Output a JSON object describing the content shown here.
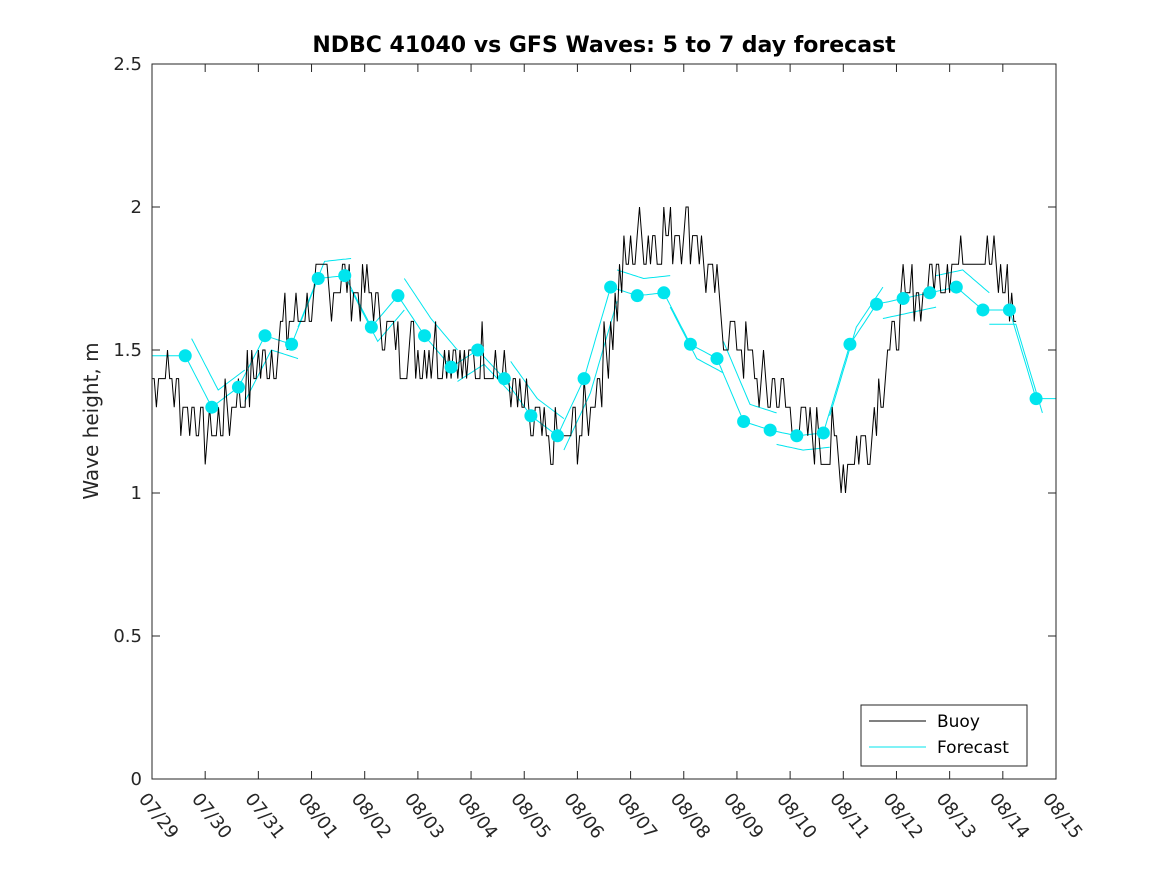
{
  "chart_data": {
    "type": "line",
    "title": "NDBC 41040 vs GFS Waves: 5 to 7 day forecast",
    "xlabel": "",
    "ylabel": "Wave height, m",
    "x_range_days": [
      0,
      17
    ],
    "ylim": [
      0,
      2.5
    ],
    "x_tick_labels": [
      "07/29",
      "07/30",
      "07/31",
      "08/01",
      "08/02",
      "08/03",
      "08/04",
      "08/05",
      "08/06",
      "08/07",
      "08/08",
      "08/09",
      "08/10",
      "08/11",
      "08/12",
      "08/13",
      "08/14",
      "08/15"
    ],
    "y_tick_labels": [
      "0",
      "0.5",
      "1",
      "1.5",
      "2",
      "2.5"
    ],
    "y_ticks": [
      0,
      0.5,
      1,
      1.5,
      2,
      2.5
    ],
    "legend": {
      "position": "bottom-right",
      "entries": [
        "Buoy",
        "Forecast"
      ]
    },
    "series": [
      {
        "name": "Buoy",
        "color": "#000000",
        "x_days": [
          0.0,
          0.25,
          0.5,
          0.75,
          1.0,
          1.25,
          1.5,
          1.75,
          2.0,
          2.25,
          2.5,
          2.75,
          3.0,
          3.25,
          3.5,
          3.75,
          4.0,
          4.25,
          4.5,
          4.75,
          5.0,
          5.25,
          5.5,
          5.75,
          6.0,
          6.25,
          6.5,
          6.75,
          7.0,
          7.25,
          7.5,
          7.75,
          8.0,
          8.25,
          8.5,
          8.75,
          9.0,
          9.25,
          9.5,
          9.75,
          10.0,
          10.25,
          10.5,
          10.75,
          11.0,
          11.25,
          11.5,
          11.75,
          12.0,
          12.25,
          12.5,
          12.75,
          13.0,
          13.25,
          13.5,
          13.75,
          14.0,
          14.25,
          14.5,
          14.75,
          15.0,
          15.25,
          15.5,
          15.75,
          16.0,
          16.25
        ],
        "values": [
          1.4,
          1.45,
          1.35,
          1.28,
          1.22,
          1.22,
          1.3,
          1.38,
          1.45,
          1.5,
          1.55,
          1.6,
          1.68,
          1.72,
          1.76,
          1.74,
          1.7,
          1.64,
          1.55,
          1.5,
          1.48,
          1.5,
          1.52,
          1.48,
          1.42,
          1.5,
          1.44,
          1.36,
          1.28,
          1.22,
          1.16,
          1.18,
          1.22,
          1.3,
          1.45,
          1.7,
          1.85,
          1.9,
          1.88,
          1.92,
          1.95,
          1.9,
          1.75,
          1.62,
          1.52,
          1.44,
          1.38,
          1.34,
          1.28,
          1.24,
          1.2,
          1.16,
          1.12,
          1.14,
          1.22,
          1.4,
          1.6,
          1.7,
          1.72,
          1.75,
          1.8,
          1.86,
          1.85,
          1.82,
          1.75,
          1.6
        ]
      },
      {
        "name": "Forecast",
        "color": "#00e5ee",
        "dots_x_days": [
          0.625,
          1.125,
          1.625,
          2.125,
          2.625,
          3.125,
          3.625,
          4.125,
          4.625,
          5.125,
          5.625,
          6.125,
          6.625,
          7.125,
          7.625,
          8.125,
          8.625,
          9.125,
          9.625,
          10.125,
          10.625,
          11.125,
          11.625,
          12.125,
          12.625,
          13.125,
          13.625,
          14.125,
          14.625,
          15.125,
          15.625,
          16.125,
          16.625
        ],
        "dots_values": [
          1.48,
          1.3,
          1.37,
          1.55,
          1.52,
          1.75,
          1.76,
          1.58,
          1.69,
          1.55,
          1.44,
          1.5,
          1.4,
          1.27,
          1.2,
          1.4,
          1.72,
          1.69,
          1.7,
          1.52,
          1.47,
          1.25,
          1.22,
          1.2,
          1.21,
          1.52,
          1.66,
          1.68,
          1.7,
          1.72,
          1.64,
          1.64,
          1.33
        ]
      }
    ]
  }
}
